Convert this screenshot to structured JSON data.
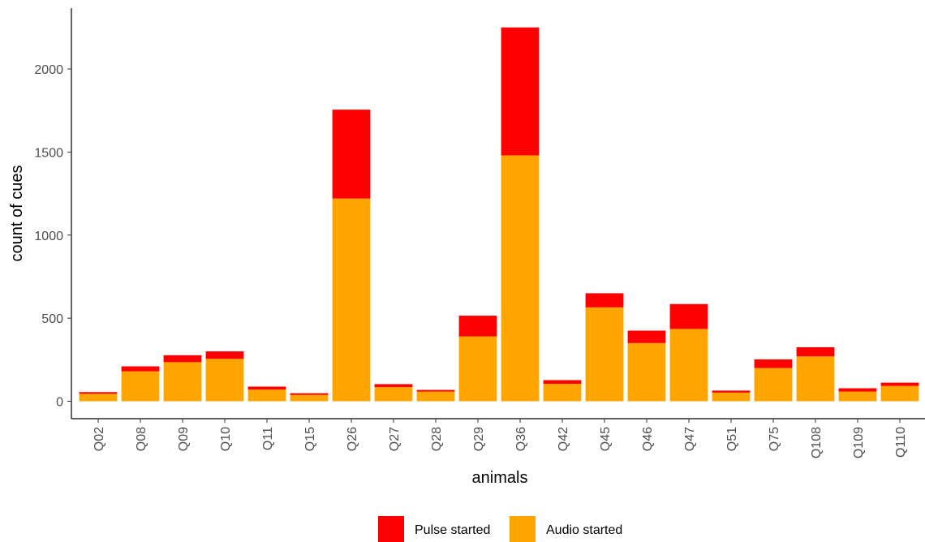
{
  "chart_data": {
    "type": "bar",
    "stacked": true,
    "title": "",
    "xlabel": "animals",
    "ylabel": "count of cues",
    "categories": [
      "Q02",
      "Q08",
      "Q09",
      "Q10",
      "Q11",
      "Q15",
      "Q26",
      "Q27",
      "Q28",
      "Q29",
      "Q36",
      "Q42",
      "Q45",
      "Q46",
      "Q47",
      "Q51",
      "Q75",
      "Q108",
      "Q109",
      "Q110"
    ],
    "series": [
      {
        "name": "Audio started",
        "color": "#FFA500",
        "values": [
          45,
          180,
          235,
          255,
          70,
          38,
          1220,
          85,
          58,
          390,
          1480,
          105,
          565,
          350,
          435,
          52,
          200,
          270,
          58,
          92
        ]
      },
      {
        "name": "Pulse started",
        "color": "#FF0000",
        "values": [
          10,
          30,
          42,
          45,
          18,
          10,
          535,
          18,
          10,
          125,
          770,
          22,
          85,
          75,
          150,
          12,
          52,
          55,
          20,
          20
        ]
      }
    ],
    "yticks": [
      0,
      500,
      1000,
      1500,
      2000
    ],
    "ylim": [
      -100,
      2360
    ],
    "grid": false,
    "legend": {
      "position": "bottom",
      "entries": [
        {
          "label": "Pulse started",
          "color": "#FF0000"
        },
        {
          "label": "Audio started",
          "color": "#FFA500"
        }
      ]
    }
  }
}
